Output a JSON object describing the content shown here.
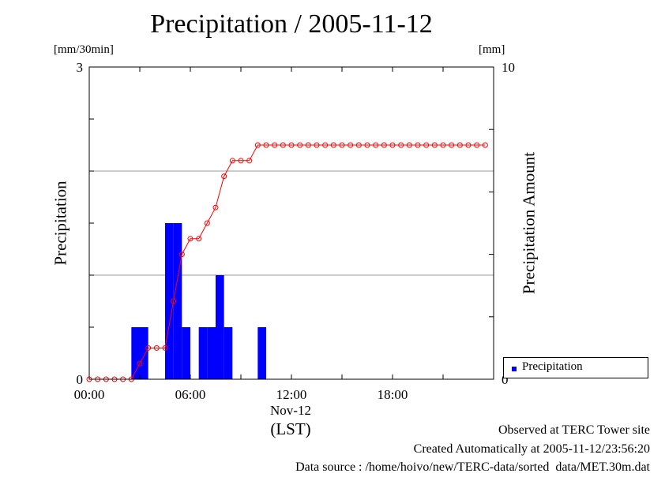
{
  "title": "Precipitation / 2005-11-12",
  "units": {
    "left": "[mm/30min]",
    "right": "[mm]"
  },
  "axis_labels": {
    "left": "Precipitation",
    "right": "Precipitation Amount"
  },
  "x_axis": {
    "ticks": [
      {
        "value": 0,
        "label": "00:00"
      },
      {
        "value": 12,
        "label": "06:00"
      },
      {
        "value": 24,
        "label": "12:00"
      },
      {
        "value": 36,
        "label": "18:00"
      }
    ],
    "date_label": "Nov-12",
    "tz_label": "(LST)"
  },
  "y_left": {
    "ticks": [
      {
        "value": 0,
        "label": "0"
      },
      {
        "value": 3,
        "label": "3"
      }
    ]
  },
  "y_right": {
    "ticks": [
      {
        "value": 0,
        "label": "0"
      },
      {
        "value": 10,
        "label": "10"
      }
    ]
  },
  "legend": {
    "label": "Precipitation",
    "color": "#0000ff"
  },
  "footer": {
    "line1": "Observed at TERC Tower site",
    "line2": "Created Automatically at 2005-11-12/23:56:20",
    "line3": "Data source : /home/hoivo/new/TERC-data/sorted  data/MET.30m.dat"
  },
  "colors": {
    "bar": "#0000ff",
    "amount_line": "#ff0000",
    "grid": "#999999"
  },
  "chart_data": {
    "type": "bar",
    "title": "Precipitation / 2005-11-12",
    "x_unit": "half-hour index (0 = 00:00, 48 = 24:00)",
    "xlim": [
      0,
      48
    ],
    "ylim_left": [
      0,
      3
    ],
    "ylim_right": [
      0,
      10
    ],
    "grid": true,
    "legend_position": "right",
    "series": [
      {
        "name": "Precipitation",
        "type": "bar",
        "axis": "left",
        "x": [
          5,
          6,
          9,
          10,
          11,
          13,
          14,
          15,
          16,
          20
        ],
        "values": [
          0.5,
          0.5,
          1.5,
          1.5,
          0.5,
          0.5,
          0.5,
          1.0,
          0.5,
          0.5
        ]
      },
      {
        "type": "line",
        "axis": "right",
        "x": [
          0,
          1,
          2,
          3,
          4,
          5,
          6,
          7,
          8,
          9,
          10,
          11,
          12,
          13,
          14,
          15,
          16,
          17,
          18,
          19,
          20,
          21,
          22,
          23,
          24,
          25,
          26,
          27,
          28,
          29,
          30,
          31,
          32,
          33,
          34,
          35,
          36,
          37,
          38,
          39,
          40,
          41,
          42,
          43,
          44,
          45,
          46,
          47
        ],
        "values": [
          0,
          0,
          0,
          0,
          0,
          0,
          0.5,
          1.0,
          1.0,
          1.0,
          2.5,
          4.0,
          4.5,
          4.5,
          5.0,
          5.5,
          6.5,
          7.0,
          7.0,
          7.0,
          7.5,
          7.5,
          7.5,
          7.5,
          7.5,
          7.5,
          7.5,
          7.5,
          7.5,
          7.5,
          7.5,
          7.5,
          7.5,
          7.5,
          7.5,
          7.5,
          7.5,
          7.5,
          7.5,
          7.5,
          7.5,
          7.5,
          7.5,
          7.5,
          7.5,
          7.5,
          7.5,
          7.5
        ]
      }
    ]
  }
}
